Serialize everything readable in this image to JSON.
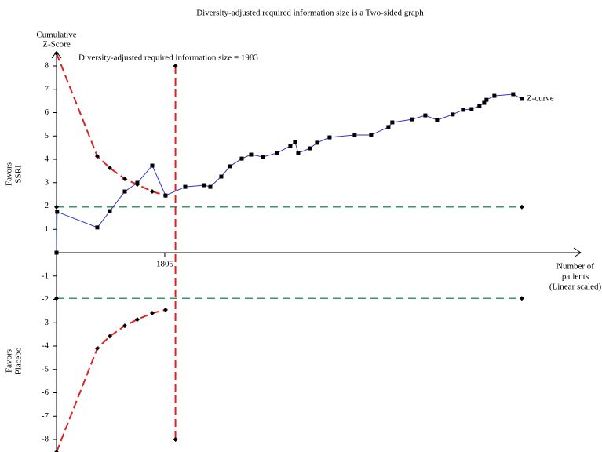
{
  "chart_data": {
    "type": "line",
    "title": "Diversity-adjusted required information size is a Two-sided graph",
    "y_label": [
      "Cumulative",
      "Z-Score"
    ],
    "favors_upper": [
      "Favors",
      "SSRI"
    ],
    "favors_lower": [
      "Favors",
      "Placebo"
    ],
    "x_label": [
      "Number of",
      "patients",
      "(Linear scaled)"
    ],
    "xlim": [
      0,
      8740
    ],
    "ylim": [
      -8,
      8
    ],
    "xticks": [
      1805
    ],
    "yticks": [
      -8,
      -7,
      -6,
      -5,
      -4,
      -3,
      -2,
      -1,
      1,
      2,
      3,
      4,
      5,
      6,
      7,
      8
    ],
    "series": [
      {
        "name": "Z-curve",
        "color": "#3333cc",
        "x": [
          0,
          10,
          680,
          889,
          1138,
          1347,
          1596,
          1818,
          2145,
          2459,
          2564,
          2747,
          2891,
          3087,
          3244,
          3440,
          3675,
          3898,
          3976,
          4029,
          4225,
          4343,
          4552,
          4970,
          5245,
          5533,
          5598,
          5925,
          6148,
          6344,
          6605,
          6775,
          6919,
          7050,
          7129,
          7168,
          7299,
          7613,
          7757
        ],
        "values": [
          0,
          1.75,
          1.08,
          1.78,
          2.62,
          2.99,
          3.73,
          2.45,
          2.82,
          2.89,
          2.82,
          3.26,
          3.7,
          4.03,
          4.2,
          4.1,
          4.27,
          4.57,
          4.74,
          4.27,
          4.47,
          4.71,
          4.94,
          5.04,
          5.04,
          5.38,
          5.58,
          5.71,
          5.88,
          5.68,
          5.92,
          6.12,
          6.15,
          6.29,
          6.42,
          6.55,
          6.72,
          6.79,
          6.59
        ]
      }
    ],
    "boundaries": {
      "color": "#dd2222",
      "x": [
        0,
        680,
        889,
        1138,
        1347,
        1596,
        1818
      ],
      "upper": [
        8.54,
        4.13,
        3.63,
        3.16,
        2.92,
        2.62,
        2.45
      ],
      "lower": [
        -8.54,
        -4.1,
        -3.58,
        -3.13,
        -2.86,
        -2.59,
        -2.45
      ]
    },
    "conventional_boundaries": {
      "color": "#339966",
      "x": [
        0,
        7757
      ],
      "upper": 1.96,
      "lower": -1.96
    },
    "ris": {
      "label": "Diversity-adjusted required information size = 1983",
      "value": 1983,
      "z_range": [
        -8,
        8
      ],
      "color": "#dd2222"
    }
  }
}
